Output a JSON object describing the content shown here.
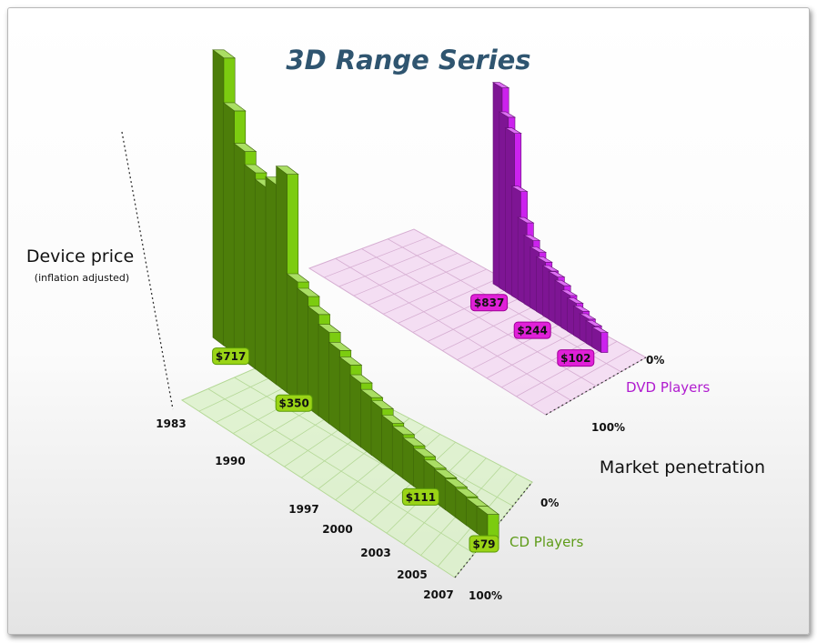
{
  "chart_data": {
    "type": "bar",
    "title": "3D Range Series",
    "ylabel": "Device price",
    "ylabel_sub": "(inflation adjusted)",
    "zlabel": "Market penetration",
    "x_ticks": [
      "1983",
      "1990",
      "1997",
      "2000",
      "2003",
      "2005",
      "2007"
    ],
    "z_ticks": [
      "0%",
      "100%"
    ],
    "series": [
      {
        "name": "DVD Players",
        "color": "#cc22ee",
        "values": [
          1030,
          900,
          837,
          560,
          420,
          350,
          310,
          280,
          255,
          244,
          220,
          190,
          170,
          150,
          130,
          115,
          102
        ],
        "data_labels": [
          {
            "index": 2,
            "text": "$837"
          },
          {
            "index": 9,
            "text": "$244"
          },
          {
            "index": 16,
            "text": "$102"
          }
        ],
        "z_ticks": [
          "0%",
          "100%"
        ]
      },
      {
        "name": "CD Players",
        "color": "#7ccc10",
        "values": [
          850,
          717,
          620,
          580,
          560,
          590,
          645,
          350,
          330,
          300,
          270,
          240,
          220,
          190,
          170,
          160,
          140,
          130,
          120,
          111,
          100,
          95,
          90,
          85,
          80,
          79
        ],
        "data_labels": [
          {
            "index": 1,
            "text": "$717"
          },
          {
            "index": 7,
            "text": "$350"
          },
          {
            "index": 19,
            "text": "$111"
          },
          {
            "index": 25,
            "text": "$79"
          }
        ],
        "z_ticks": [
          "0%",
          "100%"
        ]
      }
    ],
    "grid": true,
    "legend": "series labels beside each series"
  }
}
